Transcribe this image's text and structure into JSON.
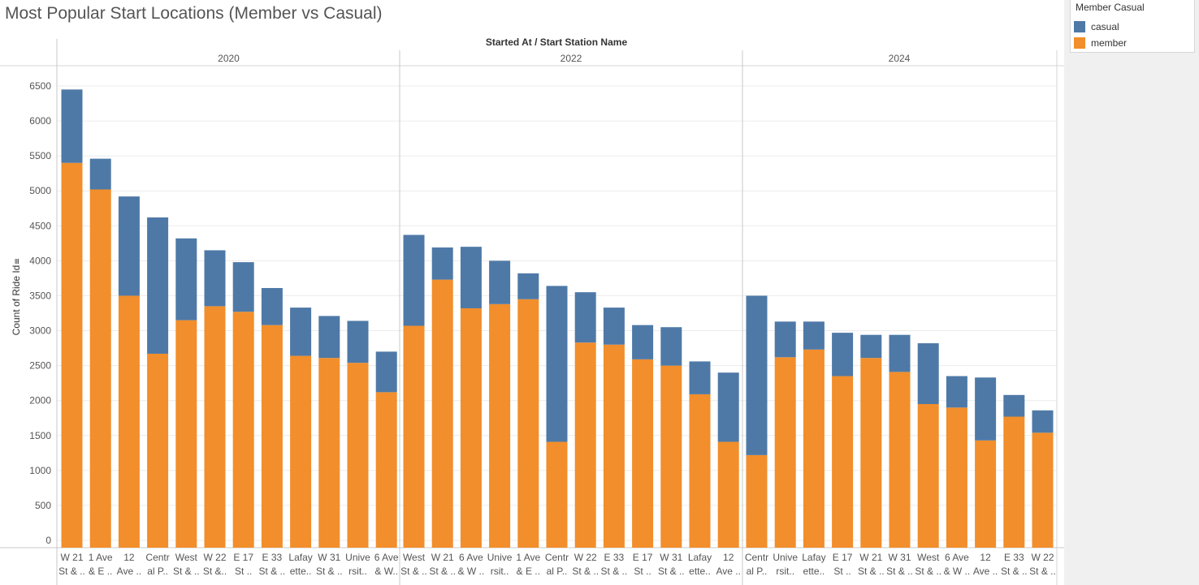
{
  "title": "Most Popular Start Locations (Member vs Casual)",
  "legend": {
    "title": "Member Casual",
    "items": [
      {
        "label": "casual",
        "color": "#4e79a7"
      },
      {
        "label": "member",
        "color": "#f28e2b"
      }
    ]
  },
  "chart_data": {
    "type": "bar",
    "stacked": true,
    "column_header": "Started At / Start Station Name",
    "ylabel": "Count of Ride Id",
    "ylim": [
      0,
      6500
    ],
    "yticks": [
      0,
      500,
      1000,
      1500,
      2000,
      2500,
      3000,
      3500,
      4000,
      4500,
      5000,
      5500,
      6000,
      6500
    ],
    "grid": true,
    "legend_position": "top-right",
    "panels": [
      {
        "label": "2020",
        "categories": [
          [
            "W 21",
            "St & .."
          ],
          [
            "1 Ave",
            "& E .."
          ],
          [
            "12",
            "Ave .."
          ],
          [
            "Centr",
            "al P.."
          ],
          [
            "West",
            "St & .."
          ],
          [
            "W 22",
            "St &.."
          ],
          [
            "E 17",
            "St .."
          ],
          [
            "E 33",
            "St & .."
          ],
          [
            "Lafay",
            "ette.."
          ],
          [
            "W 31",
            "St & .."
          ],
          [
            "Unive",
            "rsit.."
          ],
          [
            "6 Ave",
            "& W.."
          ]
        ],
        "series": [
          {
            "name": "member",
            "values": [
              5400,
              5020,
              3500,
              2670,
              3150,
              3350,
              3270,
              3080,
              2640,
              2610,
              2540,
              2120
            ]
          },
          {
            "name": "casual",
            "values": [
              1050,
              440,
              1420,
              1950,
              1170,
              800,
              710,
              530,
              690,
              600,
              600,
              580
            ]
          }
        ]
      },
      {
        "label": "2022",
        "categories": [
          [
            "West",
            "St & .."
          ],
          [
            "W 21",
            "St & .."
          ],
          [
            "6 Ave",
            "& W .."
          ],
          [
            "Unive",
            "rsit.."
          ],
          [
            "1 Ave",
            "& E .."
          ],
          [
            "Centr",
            "al P.."
          ],
          [
            "W 22",
            "St & .."
          ],
          [
            "E 33",
            "St & .."
          ],
          [
            "E 17",
            "St .."
          ],
          [
            "W 31",
            "St & .."
          ],
          [
            "Lafay",
            "ette.."
          ],
          [
            "12",
            "Ave .."
          ]
        ],
        "series": [
          {
            "name": "member",
            "values": [
              3070,
              3730,
              3320,
              3380,
              3450,
              1410,
              2830,
              2800,
              2590,
              2500,
              2090,
              1410
            ]
          },
          {
            "name": "casual",
            "values": [
              1300,
              460,
              880,
              620,
              370,
              2230,
              720,
              530,
              490,
              550,
              470,
              990
            ]
          }
        ]
      },
      {
        "label": "2024",
        "categories": [
          [
            "Centr",
            "al P.."
          ],
          [
            "Unive",
            "rsit.."
          ],
          [
            "Lafay",
            "ette.."
          ],
          [
            "E 17",
            "St .."
          ],
          [
            "W 21",
            "St & .."
          ],
          [
            "W 31",
            "St & .."
          ],
          [
            "West",
            "St & .."
          ],
          [
            "6 Ave",
            "& W .."
          ],
          [
            "12",
            "Ave .."
          ],
          [
            "E 33",
            "St & .."
          ],
          [
            "W 22",
            "St & .."
          ]
        ],
        "series": [
          {
            "name": "member",
            "values": [
              1220,
              2620,
              2730,
              2350,
              2610,
              2410,
              1950,
              1900,
              1430,
              1770,
              1540
            ]
          },
          {
            "name": "casual",
            "values": [
              2280,
              510,
              400,
              620,
              330,
              530,
              870,
              450,
              900,
              310,
              320
            ]
          }
        ]
      }
    ]
  }
}
